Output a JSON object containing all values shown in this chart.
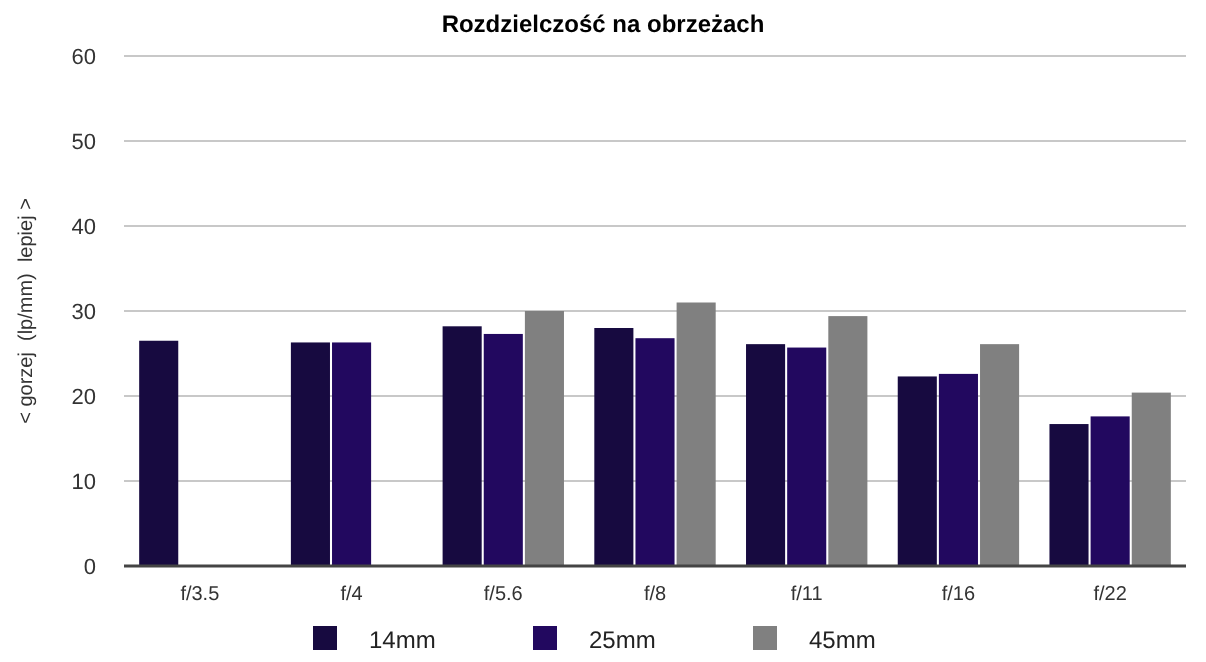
{
  "chart_data": {
    "type": "bar",
    "title": "Rozdzielczość na obrzeżach",
    "ylabel": "< gorzej  (lp/mm)  lepiej >",
    "categories": [
      "f/3.5",
      "f/4",
      "f/5.6",
      "f/8",
      "f/11",
      "f/16",
      "f/22"
    ],
    "series": [
      {
        "name": "14mm",
        "color": "#170a40",
        "values": [
          26.5,
          26.3,
          28.2,
          28.0,
          26.1,
          22.3,
          16.7
        ]
      },
      {
        "name": "25mm",
        "color": "#22085f",
        "values": [
          null,
          26.3,
          27.3,
          26.8,
          25.7,
          22.6,
          17.6
        ]
      },
      {
        "name": "45mm",
        "color": "#808080",
        "values": [
          null,
          null,
          30.0,
          31.0,
          29.4,
          26.1,
          20.4
        ]
      }
    ],
    "ylim": [
      0,
      60
    ],
    "yticks": [
      0,
      10,
      20,
      30,
      40,
      50,
      60
    ],
    "grid": "y",
    "legend": "bottom"
  }
}
